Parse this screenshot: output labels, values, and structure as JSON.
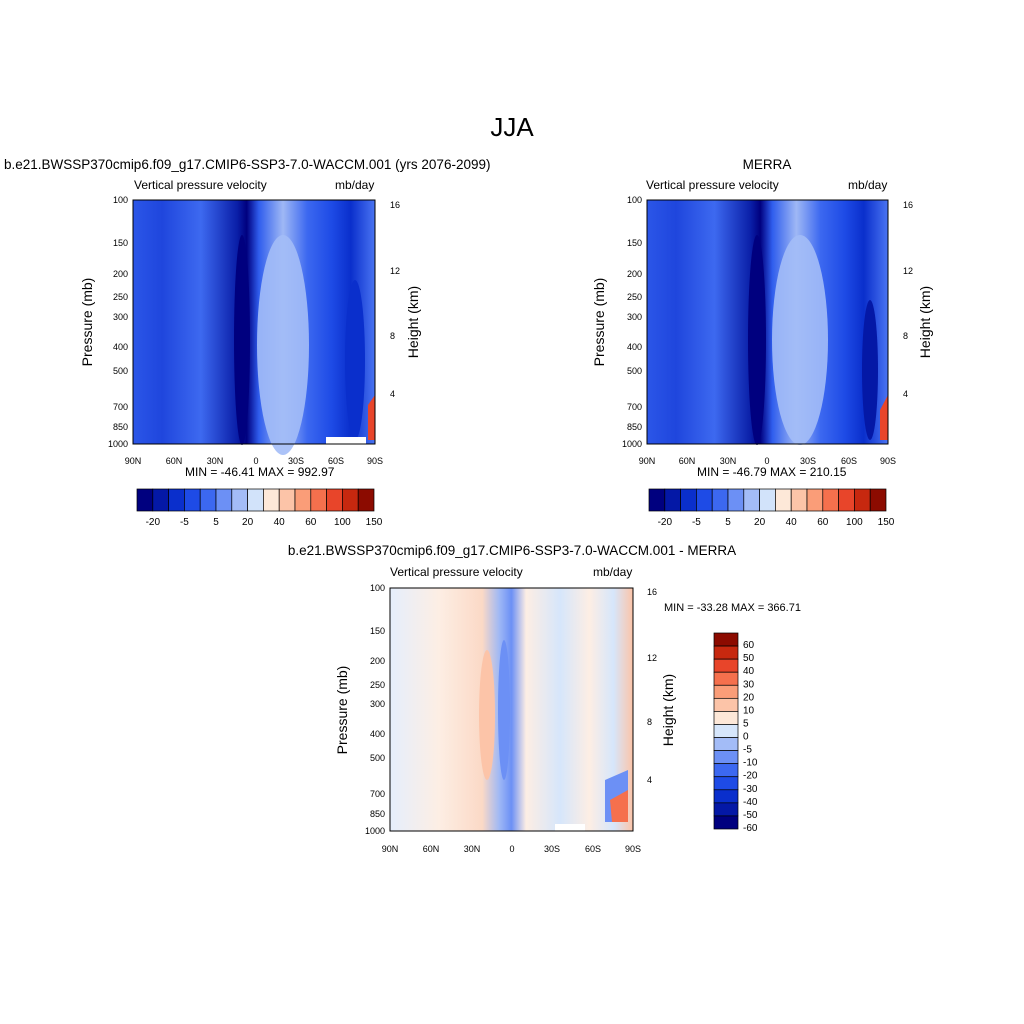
{
  "figure_title": "JJA",
  "colors": {
    "abs_scale": [
      "#00007f",
      "#0418a6",
      "#0a2fcc",
      "#1e4be6",
      "#3c68f0",
      "#6c90f5",
      "#a3bcf7",
      "#d2e3fa",
      "#fde8d8",
      "#fcc4a8",
      "#fa9d78",
      "#f5704d",
      "#e8452a",
      "#c7280f",
      "#8c0b00"
    ],
    "diff_scale": [
      "#00007f",
      "#0418a6",
      "#0a2fcc",
      "#1e4be6",
      "#3c68f0",
      "#6c90f5",
      "#a3bcf7",
      "#d6e6fb",
      "#fde8d8",
      "#fcc4a8",
      "#fa9d78",
      "#f5704d",
      "#e8452a",
      "#c7280f",
      "#8c0b00"
    ]
  },
  "chart_data": [
    {
      "type": "heatmap",
      "title": "b.e21.BWSSP370cmip6.f09_g17.CMIP6-SSP3-7.0-WACCM.001 (yrs 2076-2099)",
      "subtitle_left": "Vertical pressure velocity",
      "subtitle_right": "mb/day",
      "ylabel": "Pressure (mb)",
      "ylabel_right": "Height (km)",
      "x_ticks": [
        "90N",
        "60N",
        "30N",
        "0",
        "30S",
        "60S",
        "90S"
      ],
      "y_ticks": [
        "100",
        "150",
        "200",
        "250",
        "300",
        "400",
        "500",
        "700",
        "850",
        "1000"
      ],
      "y_ticks_right": [
        "16",
        "12",
        "8",
        "4"
      ],
      "stats": "MIN = -46.41  MAX = 992.97",
      "colorbar_labels": [
        "-20",
        "-5",
        "5",
        "20",
        "40",
        "60",
        "100",
        "150"
      ],
      "ylim": [
        1000,
        100
      ]
    },
    {
      "type": "heatmap",
      "title": "MERRA",
      "subtitle_left": "Vertical pressure velocity",
      "subtitle_right": "mb/day",
      "ylabel": "Pressure (mb)",
      "ylabel_right": "Height (km)",
      "x_ticks": [
        "90N",
        "60N",
        "30N",
        "0",
        "30S",
        "60S",
        "90S"
      ],
      "y_ticks": [
        "100",
        "150",
        "200",
        "250",
        "300",
        "400",
        "500",
        "700",
        "850",
        "1000"
      ],
      "y_ticks_right": [
        "16",
        "12",
        "8",
        "4"
      ],
      "stats": "MIN = -46.79  MAX = 210.15",
      "colorbar_labels": [
        "-20",
        "-5",
        "5",
        "20",
        "40",
        "60",
        "100",
        "150"
      ],
      "ylim": [
        1000,
        100
      ]
    },
    {
      "type": "heatmap",
      "title": "b.e21.BWSSP370cmip6.f09_g17.CMIP6-SSP3-7.0-WACCM.001 - MERRA",
      "subtitle_left": "Vertical pressure velocity",
      "subtitle_right": "mb/day",
      "ylabel": "Pressure (mb)",
      "ylabel_right": "Height (km)",
      "x_ticks": [
        "90N",
        "60N",
        "30N",
        "0",
        "30S",
        "60S",
        "90S"
      ],
      "y_ticks": [
        "100",
        "150",
        "200",
        "250",
        "300",
        "400",
        "500",
        "700",
        "850",
        "1000"
      ],
      "y_ticks_right": [
        "16",
        "12",
        "8",
        "4"
      ],
      "stats": "MIN = -33.28  MAX = 366.71",
      "colorbar_labels": [
        "60",
        "50",
        "40",
        "30",
        "20",
        "10",
        "5",
        "0",
        "-5",
        "-10",
        "-20",
        "-30",
        "-40",
        "-50",
        "-60"
      ],
      "ylim": [
        1000,
        100
      ]
    }
  ]
}
